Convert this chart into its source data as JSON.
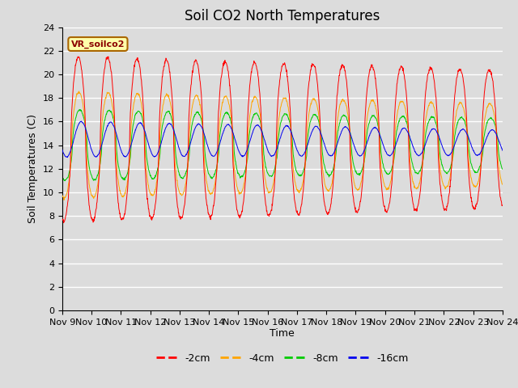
{
  "title": "Soil CO2 North Temperatures",
  "ylabel": "Soil Temperatures (C)",
  "xlabel": "Time",
  "annotation": "VR_soilco2",
  "ylim": [
    0,
    24
  ],
  "xlim": [
    0,
    15
  ],
  "x_tick_labels": [
    "Nov 9",
    "Nov 10",
    "Nov 11",
    "Nov 12",
    "Nov 13",
    "Nov 14",
    "Nov 15",
    "Nov 16",
    "Nov 17",
    "Nov 18",
    "Nov 19",
    "Nov 20",
    "Nov 21",
    "Nov 22",
    "Nov 23",
    "Nov 24"
  ],
  "colors": {
    "-2cm": "#ff0000",
    "-4cm": "#ffa500",
    "-8cm": "#00cc00",
    "-16cm": "#0000ee"
  },
  "legend_labels": [
    "-2cm",
    "-4cm",
    "-8cm",
    "-16cm"
  ],
  "background_color": "#dcdcdc",
  "fig_background": "#dcdcdc",
  "title_fontsize": 12,
  "axis_label_fontsize": 9,
  "tick_fontsize": 8
}
